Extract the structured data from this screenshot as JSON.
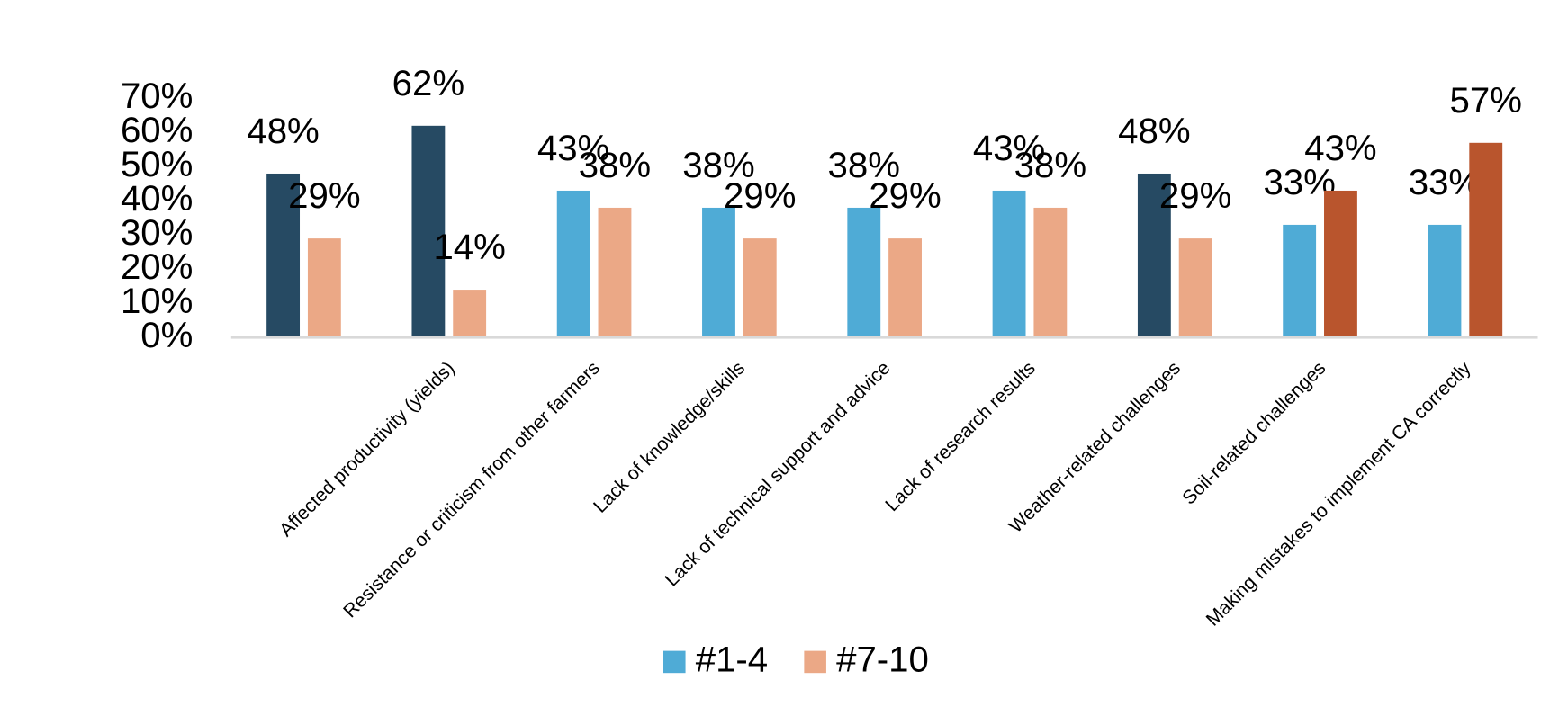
{
  "chart_data": {
    "type": "bar",
    "categories": [
      null,
      "Affected productivity (yields)",
      "Resistance or criticism from other farmers",
      "Lack of knowledge/skills",
      "Lack of technical support and advice",
      "Lack of research results",
      "Weather-related challenges",
      "Soil-related challenges",
      "Making mistakes to implement CA correctly"
    ],
    "series": [
      {
        "name": "#1-4",
        "color": "#4fabd6",
        "colors": [
          "#264a63",
          "#264a63",
          "#4fabd6",
          "#4fabd6",
          "#4fabd6",
          "#4fabd6",
          "#264a63",
          "#4fabd6",
          "#4fabd6"
        ],
        "values": [
          48,
          62,
          43,
          38,
          38,
          43,
          48,
          33,
          33
        ],
        "value_labels": [
          "48%",
          "62%",
          "43%",
          "38%",
          "38%",
          "43%",
          "48%",
          "33%",
          "33%"
        ]
      },
      {
        "name": "#7-10",
        "color": "#eba886",
        "colors": [
          "#eba886",
          "#eba886",
          "#eba886",
          "#eba886",
          "#eba886",
          "#eba886",
          "#eba886",
          "#b9552d",
          "#b9552d"
        ],
        "values": [
          29,
          14,
          38,
          29,
          29,
          38,
          29,
          43,
          57
        ],
        "value_labels": [
          "29%",
          "14%",
          "38%",
          "29%",
          "29%",
          "38%",
          "29%",
          "43%",
          "57%"
        ]
      }
    ],
    "ylim": [
      0,
      70
    ],
    "yticks": [
      {
        "value": 0,
        "label": "0%"
      },
      {
        "value": 10,
        "label": "10%"
      },
      {
        "value": 20,
        "label": "20%"
      },
      {
        "value": 30,
        "label": "30%"
      },
      {
        "value": 40,
        "label": "40%"
      },
      {
        "value": 50,
        "label": "50%"
      },
      {
        "value": 60,
        "label": "60%"
      },
      {
        "value": 70,
        "label": "70%"
      }
    ],
    "grid": false,
    "legend": "bottom"
  }
}
